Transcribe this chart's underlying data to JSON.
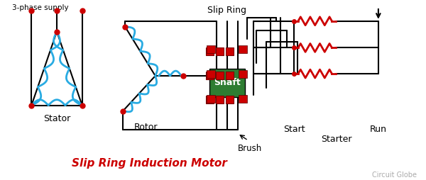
{
  "title": "Slip Ring Induction Motor",
  "subtitle": "Circuit Globe",
  "bg_color": "#ffffff",
  "black": "#000000",
  "red": "#cc0000",
  "blue": "#29abe2",
  "green": "#2e7d32",
  "label_3phase": "3-phase supply",
  "label_stator": "Stator",
  "label_rotor": "Rotor",
  "label_slipring": "Slip Ring",
  "label_brush": "Brush",
  "label_start": "Start",
  "label_run": "Run",
  "label_starter": "Starter"
}
